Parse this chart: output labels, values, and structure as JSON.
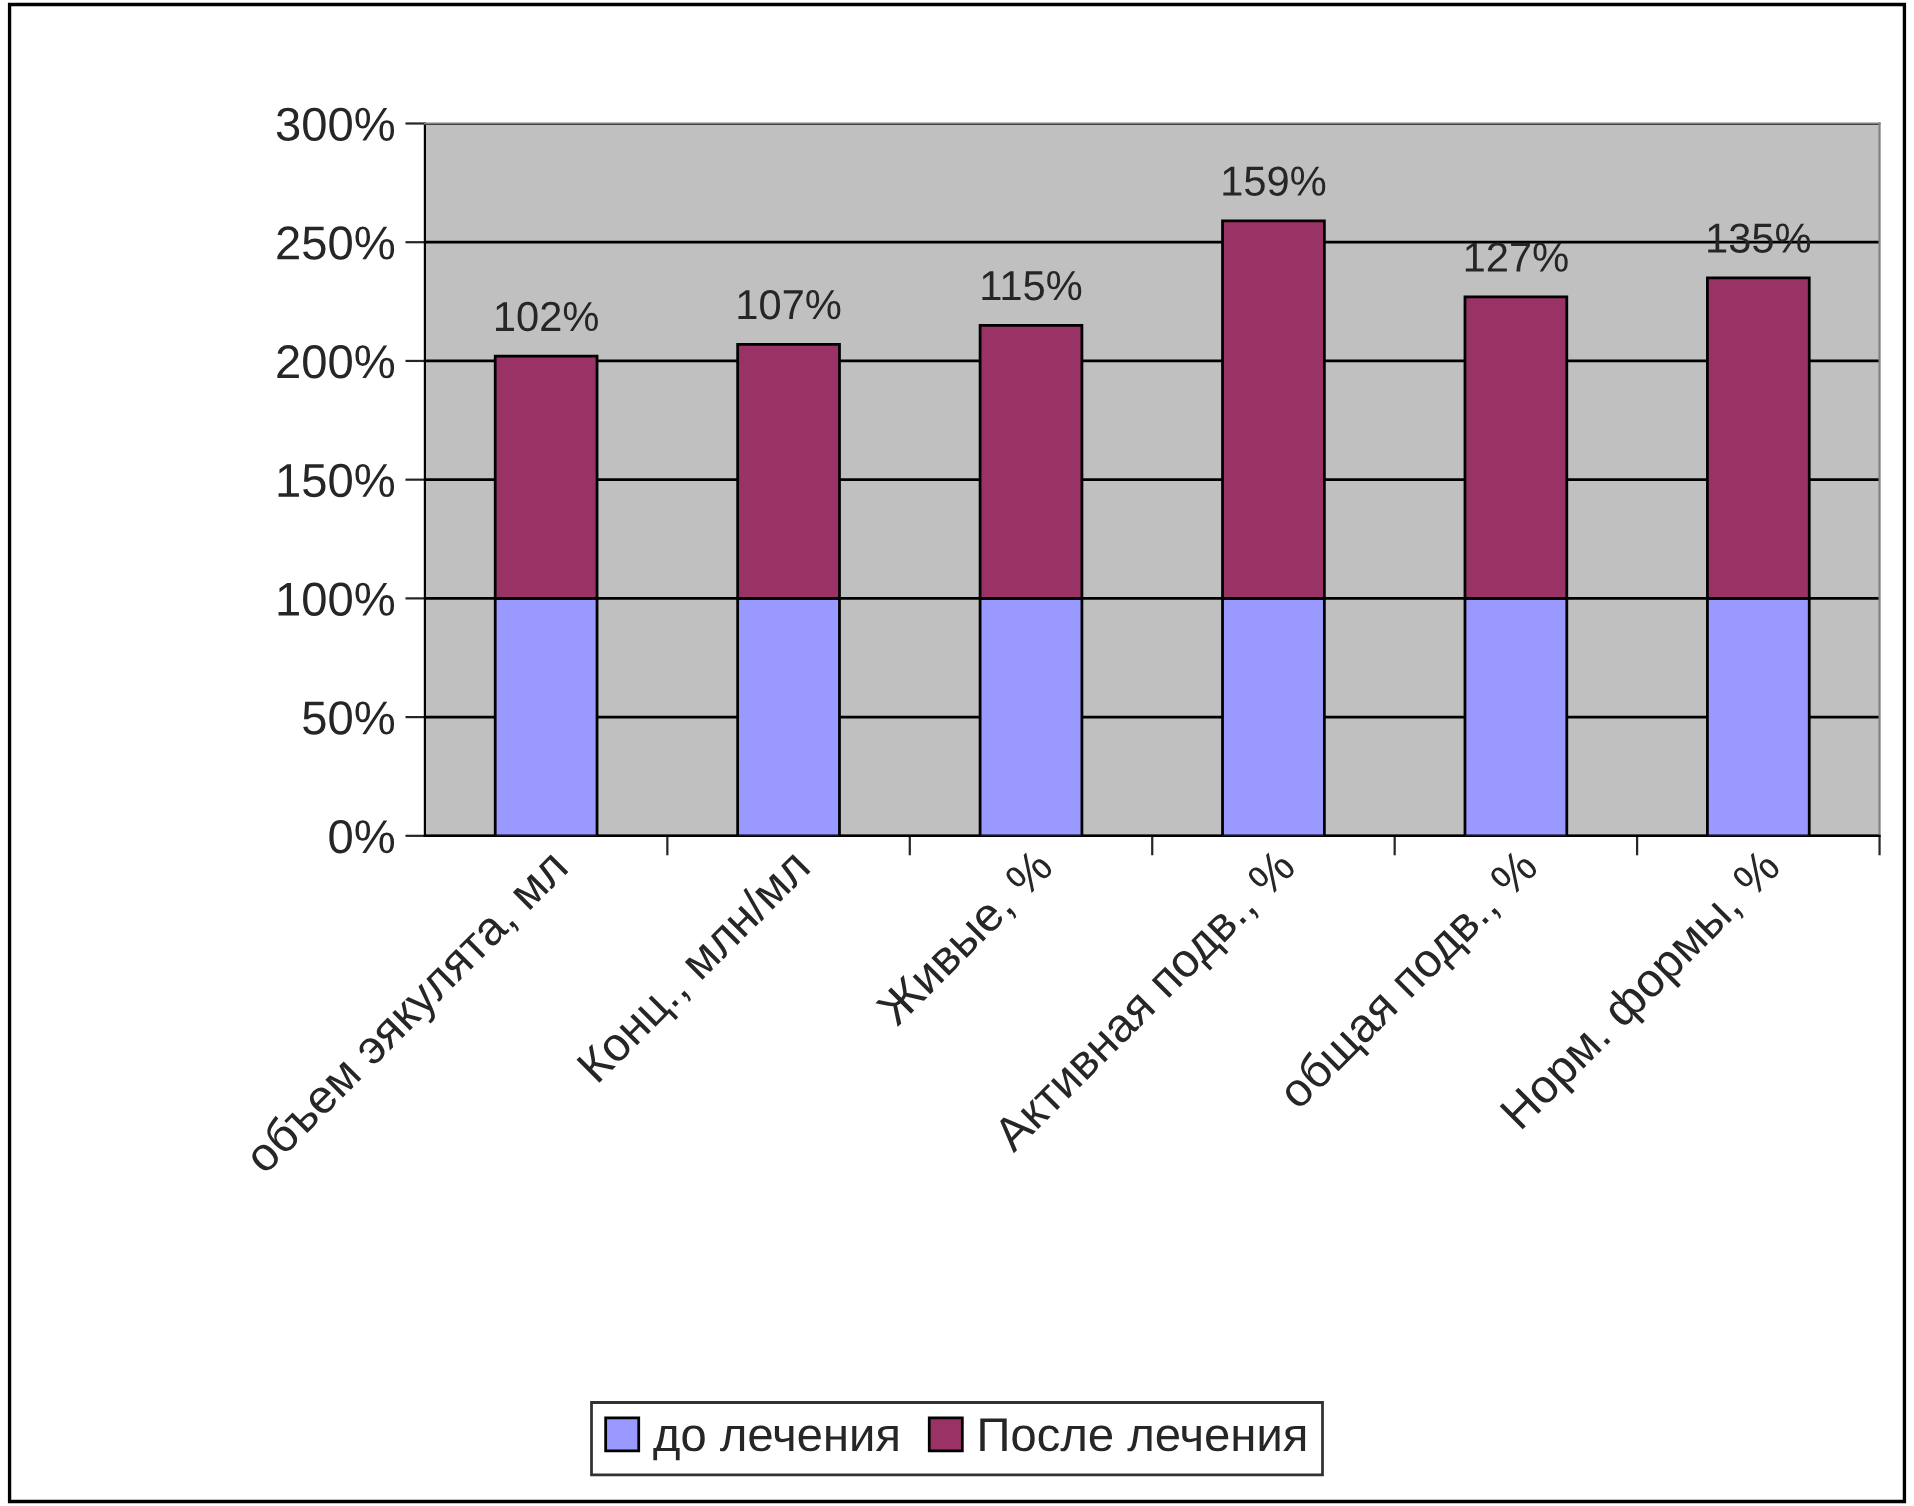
{
  "chart_data": {
    "type": "bar",
    "stacked": true,
    "categories": [
      "объем эякулята, мл",
      "Конц., млн/мл",
      "Живые, %",
      "Активная подв., %",
      "общая подв., %",
      "Норм. формы, %"
    ],
    "series": [
      {
        "name": "до лечения",
        "color": "#9999ff",
        "values": [
          100,
          100,
          100,
          100,
          100,
          100
        ]
      },
      {
        "name": "После лечения",
        "color": "#993366",
        "values": [
          102,
          107,
          115,
          159,
          127,
          135
        ],
        "value_labels": [
          "102%",
          "107%",
          "115%",
          "159%",
          "127%",
          "135%"
        ]
      }
    ],
    "ylim": [
      0,
      300
    ],
    "yticks": [
      {
        "value": 0,
        "label": "0%"
      },
      {
        "value": 50,
        "label": "50%"
      },
      {
        "value": 100,
        "label": "100%"
      },
      {
        "value": 150,
        "label": "150%"
      },
      {
        "value": 200,
        "label": "200%"
      },
      {
        "value": 250,
        "label": "250%"
      },
      {
        "value": 300,
        "label": "300%"
      }
    ],
    "grid": "y",
    "legend": "bottom"
  }
}
